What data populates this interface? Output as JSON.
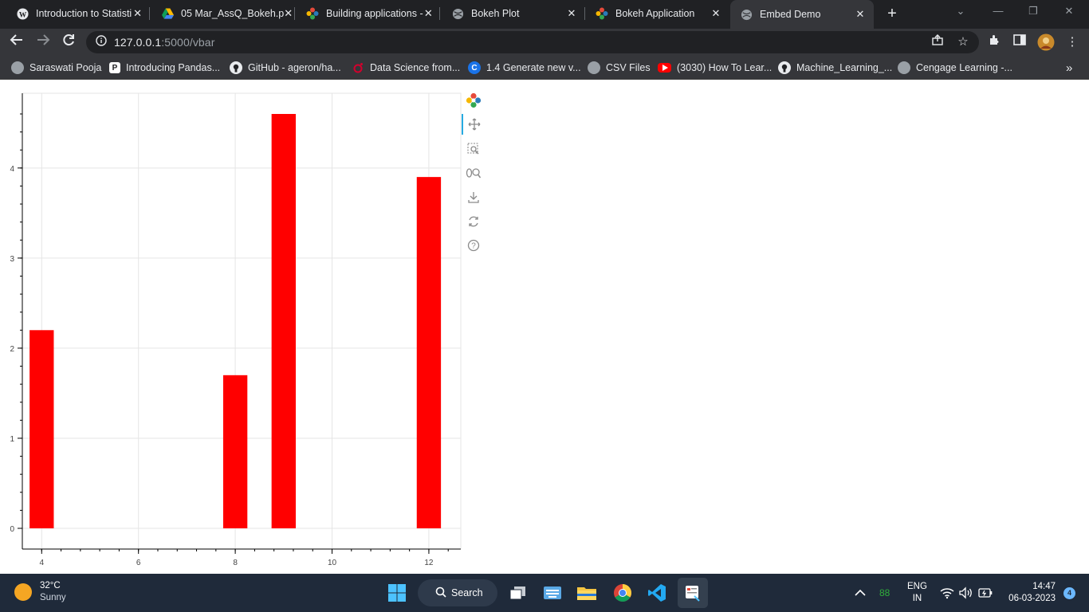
{
  "browser": {
    "tabs": [
      {
        "title": "Introduction to Statisti",
        "icon": "wordpress-icon",
        "close": "✕"
      },
      {
        "title": "05 Mar_AssQ_Bokeh.p",
        "icon": "google-drive-icon",
        "close": "✕"
      },
      {
        "title": "Building applications -",
        "icon": "bokeh-icon",
        "close": "✕"
      },
      {
        "title": "Bokeh Plot",
        "icon": "globe-icon",
        "close": "✕"
      },
      {
        "title": "Bokeh Application",
        "icon": "bokeh-icon",
        "close": "✕"
      },
      {
        "title": "Embed Demo",
        "icon": "globe-icon",
        "close": "✕",
        "active": true
      }
    ],
    "address": {
      "host": "127.0.0.1",
      "path": ":5000/vbar"
    },
    "bookmarks": [
      {
        "label": "Saraswati Pooja",
        "icon": "globe-icon"
      },
      {
        "label": "Introducing Pandas...",
        "icon": "pandas-p-icon"
      },
      {
        "label": "GitHub - ageron/ha...",
        "icon": "github-icon"
      },
      {
        "label": "Data Science from...",
        "icon": "oreilly-icon"
      },
      {
        "label": "1.4 Generate new v...",
        "icon": "c-icon"
      },
      {
        "label": "CSV Files",
        "icon": "globe-icon"
      },
      {
        "label": "(3030) How To Lear...",
        "icon": "youtube-icon"
      },
      {
        "label": "Machine_Learning_...",
        "icon": "github-icon"
      },
      {
        "label": "Cengage Learning -...",
        "icon": "globe-icon"
      }
    ],
    "bookmarks_overflow": "»"
  },
  "chart_data": {
    "type": "bar",
    "x": [
      4,
      8,
      9,
      12
    ],
    "values": [
      2.2,
      1.7,
      4.6,
      3.9
    ],
    "bar_width": 0.5,
    "color": "#ff0000",
    "xlim": [
      3.6,
      12.66
    ],
    "ylim": [
      -0.23,
      4.83
    ],
    "x_ticks": [
      4,
      6,
      8,
      10,
      12
    ],
    "y_ticks": [
      0,
      1,
      2,
      3,
      4
    ],
    "x_tick_labels": [
      "4",
      "6",
      "8",
      "10",
      "12"
    ],
    "y_tick_labels": [
      "0",
      "1",
      "2",
      "3",
      "4"
    ],
    "grid": true,
    "title": "",
    "xlabel": "",
    "ylabel": ""
  },
  "bokeh_toolbar": [
    {
      "name": "bokeh-logo-icon"
    },
    {
      "name": "pan-tool-icon"
    },
    {
      "name": "box-zoom-tool-icon"
    },
    {
      "name": "wheel-zoom-tool-icon"
    },
    {
      "name": "save-tool-icon"
    },
    {
      "name": "reset-tool-icon"
    },
    {
      "name": "help-tool-icon"
    }
  ],
  "taskbar": {
    "weather": {
      "temp": "32°C",
      "condition": "Sunny"
    },
    "search_label": "Search",
    "language": {
      "line1": "ENG",
      "line2": "IN"
    },
    "badge_88": "88",
    "time": "14:47",
    "date": "06-03-2023",
    "notifications": "4"
  }
}
